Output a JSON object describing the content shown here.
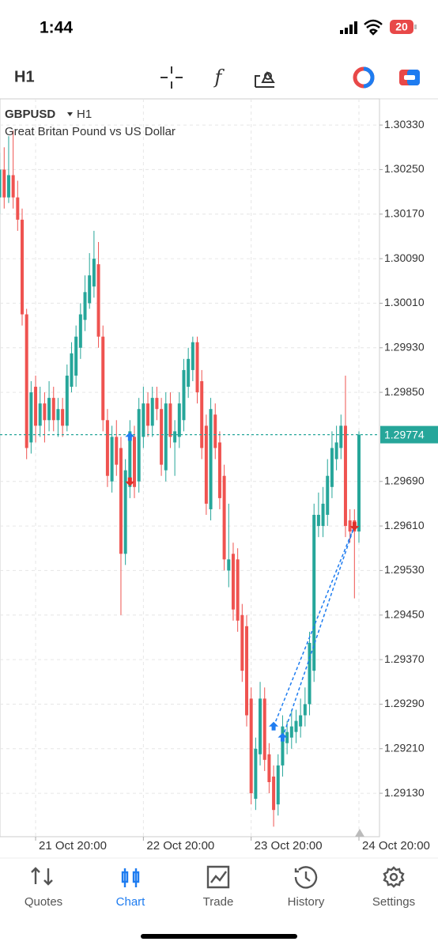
{
  "status_bar": {
    "time": "1:44",
    "battery": "20"
  },
  "toolbar": {
    "timeframe": "H1"
  },
  "chart_data": {
    "type": "candlestick",
    "symbol": "GBPUSD",
    "timeframe": "H1",
    "description": "Great Britan Pound vs US Dollar",
    "categories": [
      null,
      null,
      null,
      null,
      null,
      null,
      null,
      null,
      "21 Oct 20:00",
      null,
      null,
      null,
      null,
      null,
      null,
      null,
      null,
      null,
      null,
      null,
      null,
      null,
      null,
      null,
      null,
      null,
      null,
      null,
      null,
      null,
      null,
      null,
      "22 Oct 20:00",
      null,
      null,
      null,
      null,
      null,
      null,
      null,
      null,
      null,
      null,
      null,
      null,
      null,
      null,
      null,
      null,
      null,
      null,
      null,
      null,
      null,
      null,
      null,
      "23 Oct 20:00",
      null,
      null,
      null,
      null,
      null,
      null,
      null,
      null,
      null,
      null,
      null,
      null,
      null,
      null,
      null,
      null,
      null,
      null,
      null,
      null,
      null,
      null,
      null,
      "24 Oct 20:00"
    ],
    "open": [
      1.302,
      1.3025,
      1.302,
      1.3024,
      1.302,
      1.3016,
      1.2999,
      1.2976,
      1.2986,
      1.2979,
      1.2983,
      1.298,
      1.2984,
      1.298,
      1.2982,
      1.2979,
      1.2986,
      1.2988,
      1.2993,
      1.2998,
      1.3001,
      1.3004,
      1.3008,
      1.2995,
      1.298,
      1.2969,
      1.2977,
      1.2975,
      1.2956,
      1.2968,
      1.2977,
      1.2969,
      1.2977,
      1.2983,
      1.2979,
      1.2984,
      1.2982,
      1.2971,
      1.2983,
      1.2976,
      1.2977,
      1.298,
      1.2986,
      1.2989,
      1.2994,
      1.2987,
      1.2979,
      1.2964,
      1.2981,
      1.2976,
      1.297,
      1.2953,
      1.2956,
      1.2955,
      1.2945,
      1.2943,
      1.293,
      1.2912,
      1.292,
      1.293,
      1.292,
      1.2916,
      1.2911,
      1.2918,
      1.2922,
      1.2923,
      1.2924,
      1.2925,
      1.2927,
      1.2929,
      1.2935,
      1.2961,
      1.2961,
      1.2963,
      1.2968,
      1.2973,
      1.2975,
      1.2979,
      1.2962,
      1.2962,
      1.296
    ],
    "high": [
      1.3028,
      1.3029,
      1.3031,
      1.3032,
      1.3023,
      1.3018,
      1.3,
      1.2987,
      1.2988,
      1.2986,
      1.2985,
      1.2987,
      1.2986,
      1.2984,
      1.2984,
      1.299,
      1.2994,
      1.2997,
      1.3001,
      1.3006,
      1.301,
      1.3014,
      1.3012,
      1.2997,
      1.2982,
      1.2979,
      1.298,
      1.2977,
      1.2973,
      1.298,
      1.2979,
      1.2984,
      1.2986,
      1.2985,
      1.2986,
      1.2986,
      1.2984,
      1.2985,
      1.2985,
      1.298,
      1.2985,
      1.2991,
      1.2993,
      1.2995,
      1.2995,
      1.2989,
      1.2981,
      1.2984,
      1.2983,
      1.2978,
      1.2972,
      1.2965,
      1.2958,
      1.2957,
      1.2947,
      1.2945,
      1.2932,
      1.2923,
      1.2933,
      1.2932,
      1.2922,
      1.2918,
      1.292,
      1.2927,
      1.2926,
      1.2928,
      1.2928,
      1.293,
      1.2932,
      1.2942,
      1.2965,
      1.2967,
      1.2968,
      1.2973,
      1.2978,
      1.2979,
      1.2981,
      1.2988,
      1.2964,
      1.2964,
      1.2978
    ],
    "low": [
      1.3017,
      1.3018,
      1.3019,
      1.3018,
      1.3014,
      1.2997,
      1.2973,
      1.2974,
      1.2976,
      1.2977,
      1.2976,
      1.2978,
      1.2978,
      1.2977,
      1.2977,
      1.2978,
      1.2985,
      1.2986,
      1.2991,
      1.2996,
      1.3,
      1.3002,
      1.2993,
      1.2978,
      1.2968,
      1.2967,
      1.297,
      1.2945,
      1.2954,
      1.2966,
      1.2966,
      1.2967,
      1.2975,
      1.2977,
      1.2977,
      1.298,
      1.297,
      1.2969,
      1.2975,
      1.297,
      1.2975,
      1.2978,
      1.2984,
      1.2987,
      1.2983,
      1.2973,
      1.2963,
      1.2962,
      1.2973,
      1.2964,
      1.2953,
      1.295,
      1.2944,
      1.2942,
      1.2933,
      1.2925,
      1.2911,
      1.291,
      1.2918,
      1.2917,
      1.2913,
      1.2907,
      1.2909,
      1.2916,
      1.292,
      1.2921,
      1.2922,
      1.2923,
      1.2925,
      1.2927,
      1.2933,
      1.2959,
      1.2959,
      1.2961,
      1.2966,
      1.2971,
      1.2973,
      1.2959,
      1.2958,
      1.2948,
      1.2958
    ],
    "close": [
      1.3025,
      1.302,
      1.3024,
      1.302,
      1.3016,
      1.2999,
      1.2975,
      1.2985,
      1.2979,
      1.2983,
      1.298,
      1.2984,
      1.298,
      1.2982,
      1.2979,
      1.2988,
      1.2992,
      1.2995,
      1.2999,
      1.3003,
      1.3006,
      1.3009,
      1.2995,
      1.298,
      1.297,
      1.2977,
      1.2972,
      1.2956,
      1.2971,
      1.2978,
      1.2968,
      1.2982,
      1.2983,
      1.2979,
      1.2984,
      1.2982,
      1.2972,
      1.2983,
      1.2977,
      1.2978,
      1.2983,
      1.2989,
      1.2991,
      1.2994,
      1.2985,
      1.2975,
      1.2965,
      1.2982,
      1.2975,
      1.2966,
      1.2955,
      1.2955,
      1.2946,
      1.2944,
      1.2935,
      1.2927,
      1.2913,
      1.2921,
      1.293,
      1.2919,
      1.2915,
      1.291,
      1.2918,
      1.2925,
      1.2924,
      1.2925,
      1.2926,
      1.2927,
      1.2929,
      1.294,
      1.2963,
      1.2963,
      1.2965,
      1.297,
      1.2975,
      1.2976,
      1.2979,
      1.2961,
      1.296,
      1.296,
      1.29774
    ],
    "up_color": "#26a69a",
    "down_color": "#ef5350",
    "grid": true,
    "ylim": [
      1.29052,
      1.30377
    ],
    "yticks": [
      {
        "value": 1.3033,
        "label": "1.30330"
      },
      {
        "value": 1.3025,
        "label": "1.30250"
      },
      {
        "value": 1.3017,
        "label": "1.30170"
      },
      {
        "value": 1.3009,
        "label": "1.30090"
      },
      {
        "value": 1.3001,
        "label": "1.30010"
      },
      {
        "value": 1.2993,
        "label": "1.29930"
      },
      {
        "value": 1.2985,
        "label": "1.29850"
      },
      {
        "value": 1.2969,
        "label": "1.29690"
      },
      {
        "value": 1.2961,
        "label": "1.29610"
      },
      {
        "value": 1.2953,
        "label": "1.29530"
      },
      {
        "value": 1.2945,
        "label": "1.29450"
      },
      {
        "value": 1.2937,
        "label": "1.29370"
      },
      {
        "value": 1.2929,
        "label": "1.29290"
      },
      {
        "value": 1.2921,
        "label": "1.29210"
      },
      {
        "value": 1.2913,
        "label": "1.29130"
      }
    ],
    "current_price": 1.29774,
    "current_color": "#26a69a",
    "trades": [
      {
        "side": "buy",
        "index": 29,
        "price": 1.2977
      },
      {
        "side": "sell",
        "index": 29,
        "price": 1.2969
      },
      {
        "side": "buy",
        "index": 61,
        "price": 1.2925,
        "closed_by": 4
      },
      {
        "side": "buy",
        "index": 63,
        "price": 1.2923,
        "closed_by": 4
      },
      {
        "side": "sell",
        "index": 79,
        "price": 1.2961
      }
    ]
  },
  "nav": {
    "items": [
      "Quotes",
      "Chart",
      "Trade",
      "History",
      "Settings"
    ],
    "active": 1
  }
}
